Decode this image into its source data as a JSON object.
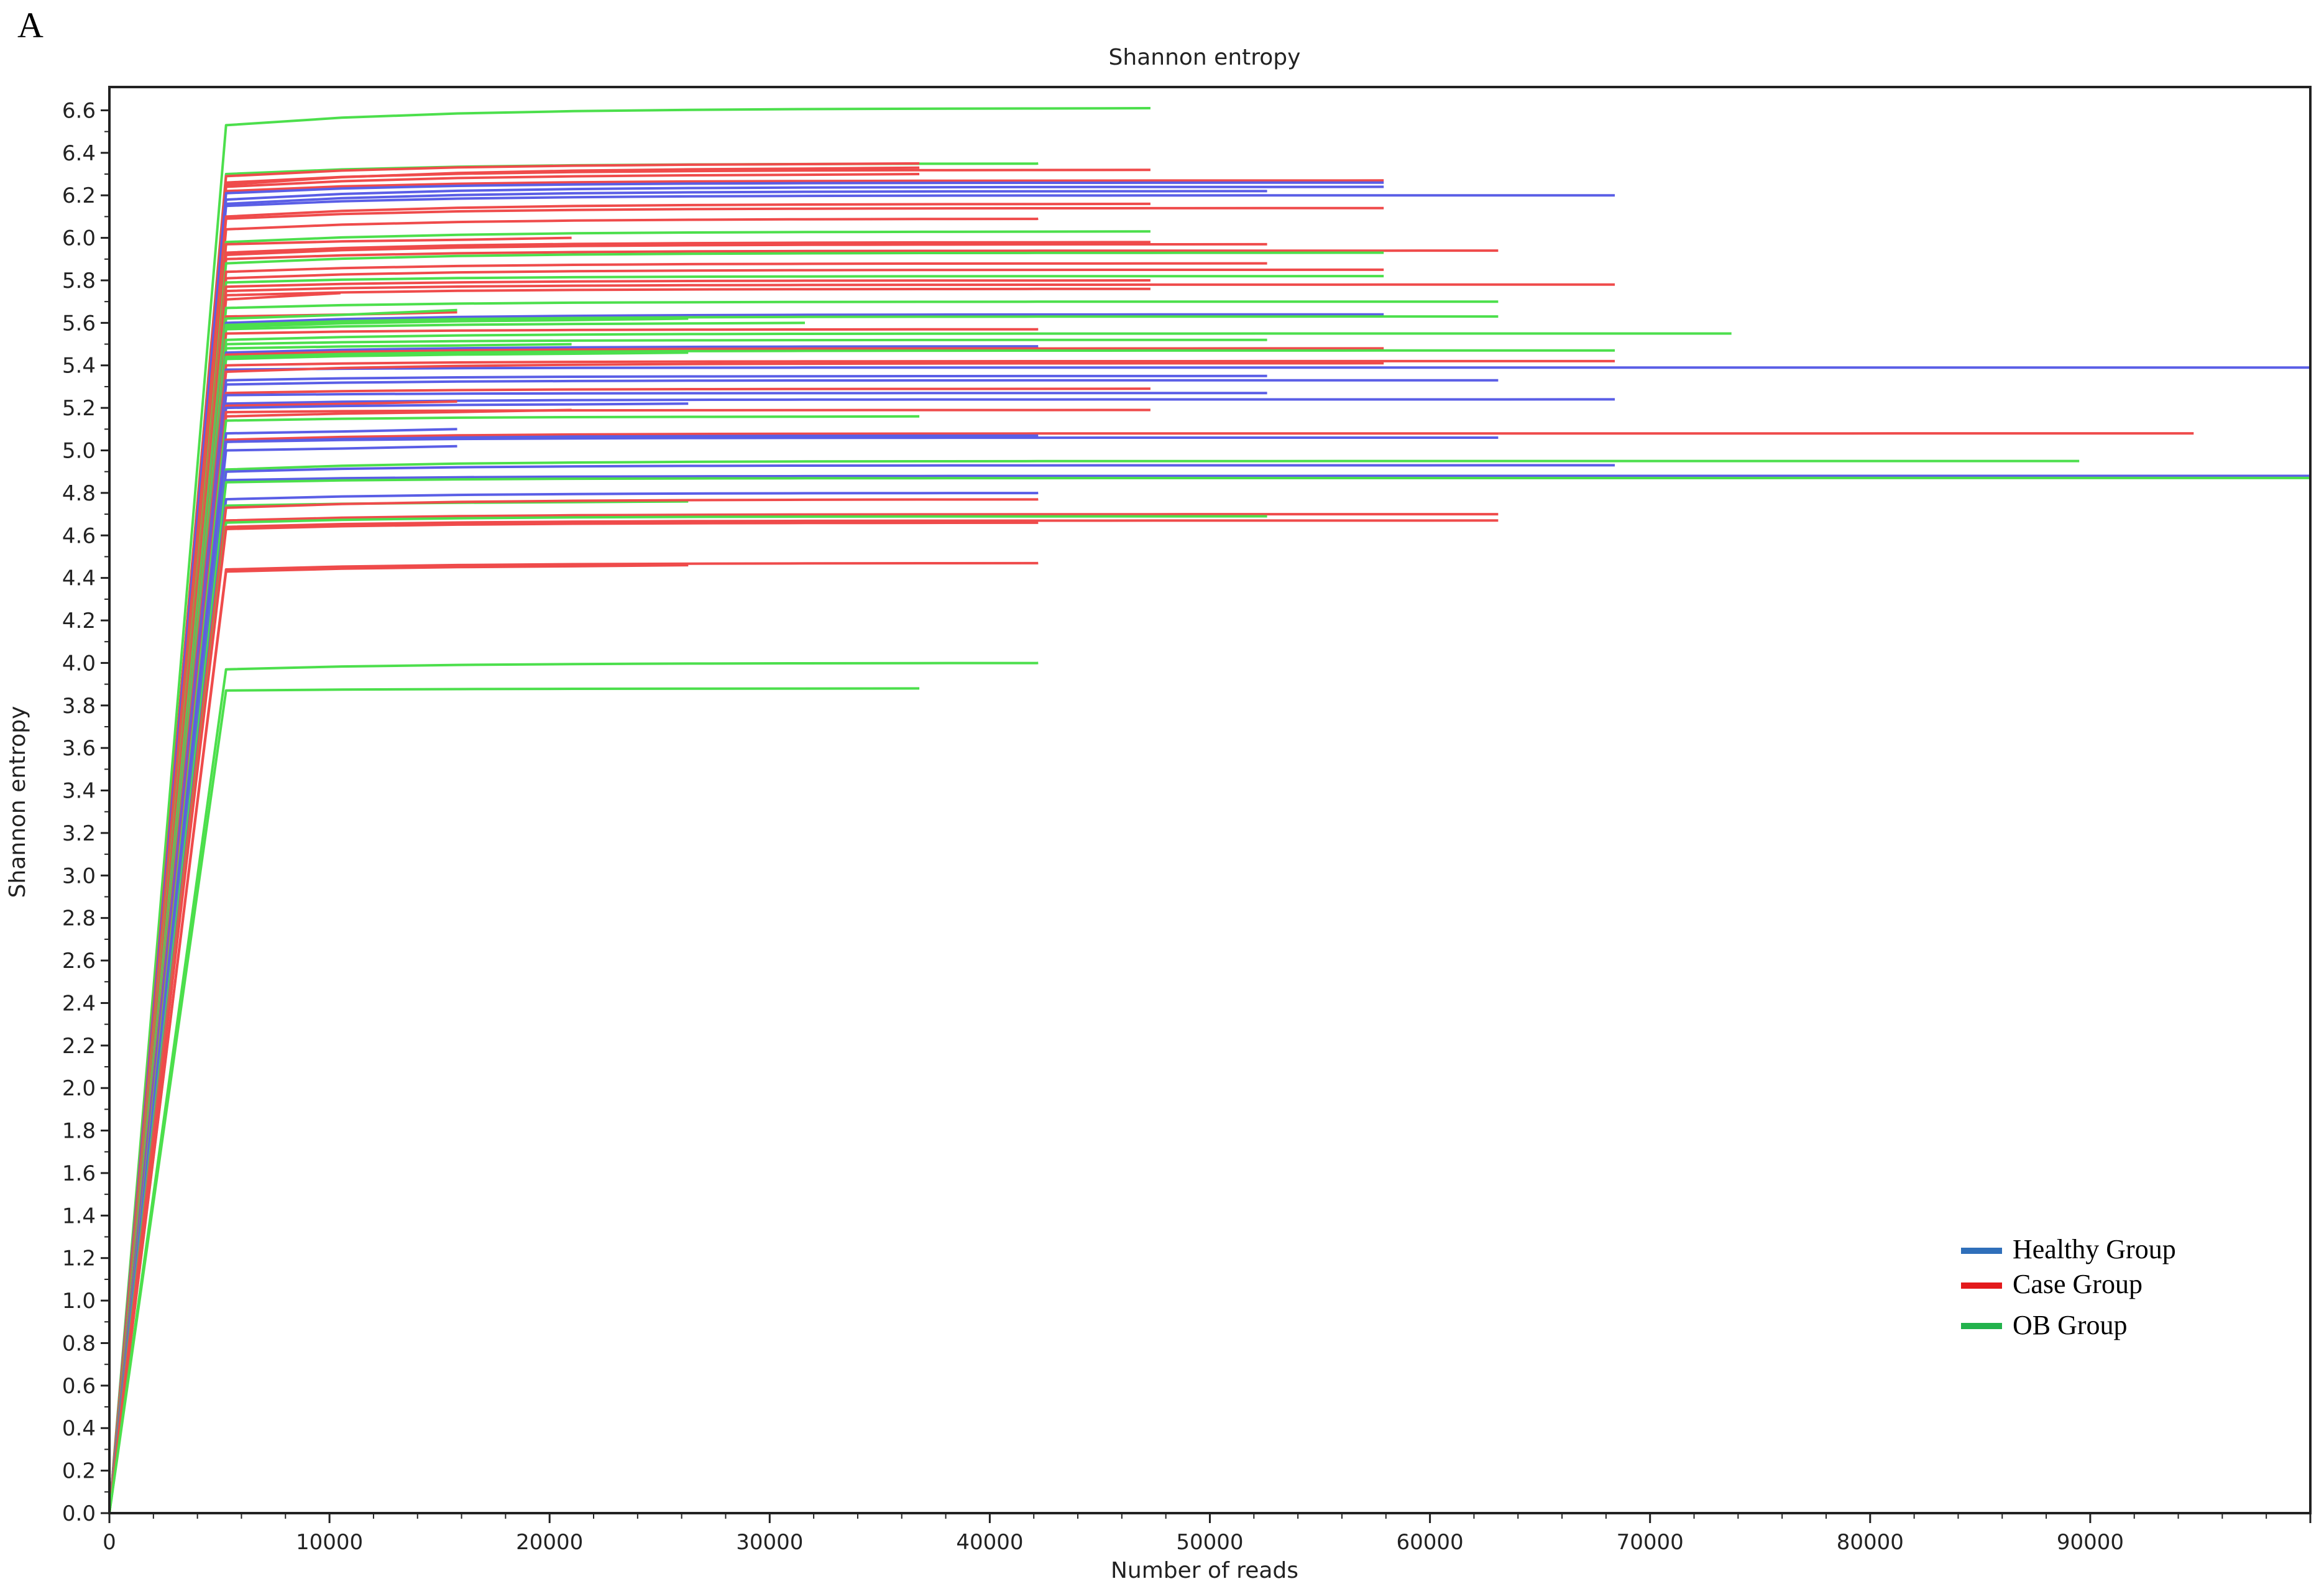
{
  "panel_label": "A",
  "chart_data": {
    "type": "line",
    "title": "Shannon entropy",
    "xlabel": "Number of reads",
    "ylabel": "Shannon entropy",
    "xlim": [
      0,
      100000
    ],
    "ylim": [
      0,
      6.7
    ],
    "x_ticks": [
      0,
      10000,
      20000,
      30000,
      40000,
      50000,
      60000,
      70000,
      80000,
      90000
    ],
    "x_tick_labels": [
      "0",
      "10000",
      "20000",
      "30000",
      "40000",
      "50000",
      "60000",
      "70000",
      "80000",
      "90000"
    ],
    "y_ticks": [
      0.0,
      0.2,
      0.4,
      0.6,
      0.8,
      1.0,
      1.2,
      1.4,
      1.6,
      1.8,
      2.0,
      2.2,
      2.4,
      2.6,
      2.8,
      3.0,
      3.2,
      3.4,
      3.6,
      3.8,
      4.0,
      4.2,
      4.4,
      4.6,
      4.8,
      5.0,
      5.2,
      5.4,
      5.6,
      5.8,
      6.0,
      6.2,
      6.4,
      6.6
    ],
    "y_tick_labels": [
      "0.0",
      "0.2",
      "0.4",
      "0.6",
      "0.8",
      "1.0",
      "1.2",
      "1.4",
      "1.6",
      "1.8",
      "2.0",
      "2.2",
      "2.4",
      "2.6",
      "2.8",
      "3.0",
      "3.2",
      "3.4",
      "3.6",
      "3.8",
      "4.0",
      "4.2",
      "4.4",
      "4.6",
      "4.8",
      "5.0",
      "5.2",
      "5.4",
      "5.6",
      "5.8",
      "6.0",
      "6.2",
      "6.4",
      "6.6"
    ],
    "grid": false,
    "legend_position": "bottom-right",
    "colors": {
      "Healthy Group": "#2f6fba",
      "Case Group": "#e31a1c",
      "OB Group": "#22b24c"
    },
    "line_colors": {
      "Healthy Group": "#5a5ee6",
      "Case Group": "#ef4b4b",
      "OB Group": "#4cdf4c"
    },
    "series": [
      {
        "group": "OB Group",
        "values": [
          6.53,
          6.61
        ],
        "max_reads": 47300
      },
      {
        "group": "OB Group",
        "values": [
          6.3,
          6.35
        ],
        "max_reads": 42200
      },
      {
        "group": "Case Group",
        "values": [
          6.29,
          6.35
        ],
        "max_reads": 36800
      },
      {
        "group": "Case Group",
        "values": [
          6.26,
          6.32
        ],
        "max_reads": 47300
      },
      {
        "group": "Case Group",
        "values": [
          6.25,
          6.33
        ],
        "max_reads": 36800
      },
      {
        "group": "Case Group",
        "values": [
          6.24,
          6.3
        ],
        "max_reads": 36800
      },
      {
        "group": "Case Group",
        "values": [
          6.22,
          6.27
        ],
        "max_reads": 57900
      },
      {
        "group": "Healthy Group",
        "values": [
          6.21,
          6.26
        ],
        "max_reads": 57900
      },
      {
        "group": "Healthy Group",
        "values": [
          6.18,
          6.24
        ],
        "max_reads": 57900
      },
      {
        "group": "Healthy Group",
        "values": [
          6.16,
          6.22
        ],
        "max_reads": 52600
      },
      {
        "group": "Healthy Group",
        "values": [
          6.15,
          6.2
        ],
        "max_reads": 68400
      },
      {
        "group": "Case Group",
        "values": [
          6.1,
          6.16
        ],
        "max_reads": 47300
      },
      {
        "group": "Case Group",
        "values": [
          6.09,
          6.14
        ],
        "max_reads": 57900
      },
      {
        "group": "Case Group",
        "values": [
          6.04,
          6.09
        ],
        "max_reads": 42200
      },
      {
        "group": "OB Group",
        "values": [
          5.98,
          6.03
        ],
        "max_reads": 47300
      },
      {
        "group": "Case Group",
        "values": [
          5.97,
          6.0
        ],
        "max_reads": 21000
      },
      {
        "group": "Case Group",
        "values": [
          5.93,
          5.98
        ],
        "max_reads": 47300
      },
      {
        "group": "Case Group",
        "values": [
          5.92,
          5.97
        ],
        "max_reads": 52600
      },
      {
        "group": "Case Group",
        "values": [
          5.9,
          5.94
        ],
        "max_reads": 63100
      },
      {
        "group": "OB Group",
        "values": [
          5.88,
          5.93
        ],
        "max_reads": 57900
      },
      {
        "group": "Case Group",
        "values": [
          5.84,
          5.88
        ],
        "max_reads": 52600
      },
      {
        "group": "Case Group",
        "values": [
          5.81,
          5.85
        ],
        "max_reads": 57900
      },
      {
        "group": "OB Group",
        "values": [
          5.79,
          5.82
        ],
        "max_reads": 57900
      },
      {
        "group": "Case Group",
        "values": [
          5.77,
          5.8
        ],
        "max_reads": 47300
      },
      {
        "group": "Case Group",
        "values": [
          5.75,
          5.78
        ],
        "max_reads": 68400
      },
      {
        "group": "Case Group",
        "values": [
          5.73,
          5.76
        ],
        "max_reads": 47300
      },
      {
        "group": "Case Group",
        "values": [
          5.71,
          5.74
        ],
        "max_reads": 10500
      },
      {
        "group": "OB Group",
        "values": [
          5.67,
          5.7
        ],
        "max_reads": 63100
      },
      {
        "group": "Case Group",
        "values": [
          5.63,
          5.65
        ],
        "max_reads": 15800
      },
      {
        "group": "OB Group",
        "values": [
          5.62,
          5.66
        ],
        "max_reads": 15800
      },
      {
        "group": "Healthy Group",
        "values": [
          5.6,
          5.64
        ],
        "max_reads": 57900
      },
      {
        "group": "OB Group",
        "values": [
          5.59,
          5.63
        ],
        "max_reads": 63100
      },
      {
        "group": "OB Group",
        "values": [
          5.58,
          5.62
        ],
        "max_reads": 26300
      },
      {
        "group": "OB Group",
        "values": [
          5.57,
          5.6
        ],
        "max_reads": 31600
      },
      {
        "group": "Case Group",
        "values": [
          5.55,
          5.57
        ],
        "max_reads": 42200
      },
      {
        "group": "OB Group",
        "values": [
          5.52,
          5.55
        ],
        "max_reads": 73700
      },
      {
        "group": "OB Group",
        "values": [
          5.5,
          5.52
        ],
        "max_reads": 52600
      },
      {
        "group": "OB Group",
        "values": [
          5.48,
          5.5
        ],
        "max_reads": 21000
      },
      {
        "group": "Healthy Group",
        "values": [
          5.46,
          5.49
        ],
        "max_reads": 42200
      },
      {
        "group": "Case Group",
        "values": [
          5.45,
          5.48
        ],
        "max_reads": 57900
      },
      {
        "group": "OB Group",
        "values": [
          5.44,
          5.47
        ],
        "max_reads": 68400
      },
      {
        "group": "OB Group",
        "values": [
          5.43,
          5.46
        ],
        "max_reads": 26300
      },
      {
        "group": "Case Group",
        "values": [
          5.4,
          5.42
        ],
        "max_reads": 68400
      },
      {
        "group": "Healthy Group",
        "values": [
          5.38,
          5.39
        ],
        "max_reads": 100000
      },
      {
        "group": "Case Group",
        "values": [
          5.37,
          5.41
        ],
        "max_reads": 57900
      },
      {
        "group": "Healthy Group",
        "values": [
          5.33,
          5.35
        ],
        "max_reads": 52600
      },
      {
        "group": "Healthy Group",
        "values": [
          5.31,
          5.33
        ],
        "max_reads": 63100
      },
      {
        "group": "Case Group",
        "values": [
          5.27,
          5.29
        ],
        "max_reads": 47300
      },
      {
        "group": "Healthy Group",
        "values": [
          5.26,
          5.27
        ],
        "max_reads": 52600
      },
      {
        "group": "Healthy Group",
        "values": [
          5.22,
          5.24
        ],
        "max_reads": 68400
      },
      {
        "group": "Case Group",
        "values": [
          5.21,
          5.23
        ],
        "max_reads": 15800
      },
      {
        "group": "Healthy Group",
        "values": [
          5.2,
          5.22
        ],
        "max_reads": 26300
      },
      {
        "group": "Case Group",
        "values": [
          5.18,
          5.19
        ],
        "max_reads": 47300
      },
      {
        "group": "Case Group",
        "values": [
          5.16,
          5.19
        ],
        "max_reads": 21000
      },
      {
        "group": "OB Group",
        "values": [
          5.14,
          5.16
        ],
        "max_reads": 36800
      },
      {
        "group": "Healthy Group",
        "values": [
          5.08,
          5.1
        ],
        "max_reads": 15800
      },
      {
        "group": "Case Group",
        "values": [
          5.05,
          5.08
        ],
        "max_reads": 94700
      },
      {
        "group": "Healthy Group",
        "values": [
          5.04,
          5.07
        ],
        "max_reads": 42200
      },
      {
        "group": "Healthy Group",
        "values": [
          5.04,
          5.06
        ],
        "max_reads": 63100
      },
      {
        "group": "Healthy Group",
        "values": [
          5.0,
          5.02
        ],
        "max_reads": 15800
      },
      {
        "group": "OB Group",
        "values": [
          4.91,
          4.95
        ],
        "max_reads": 89500
      },
      {
        "group": "Healthy Group",
        "values": [
          4.9,
          4.93
        ],
        "max_reads": 68400
      },
      {
        "group": "Healthy Group",
        "values": [
          4.86,
          4.88
        ],
        "max_reads": 100000
      },
      {
        "group": "OB Group",
        "values": [
          4.85,
          4.87
        ],
        "max_reads": 100000
      },
      {
        "group": "Healthy Group",
        "values": [
          4.77,
          4.8
        ],
        "max_reads": 42200
      },
      {
        "group": "OB Group",
        "values": [
          4.74,
          4.76
        ],
        "max_reads": 26300
      },
      {
        "group": "Case Group",
        "values": [
          4.73,
          4.77
        ],
        "max_reads": 42200
      },
      {
        "group": "Case Group",
        "values": [
          4.67,
          4.7
        ],
        "max_reads": 63100
      },
      {
        "group": "OB Group",
        "values": [
          4.66,
          4.69
        ],
        "max_reads": 52600
      },
      {
        "group": "Case Group",
        "values": [
          4.64,
          4.67
        ],
        "max_reads": 63100
      },
      {
        "group": "Case Group",
        "values": [
          4.63,
          4.66
        ],
        "max_reads": 42200
      },
      {
        "group": "Case Group",
        "values": [
          4.44,
          4.47
        ],
        "max_reads": 42200
      },
      {
        "group": "Case Group",
        "values": [
          4.43,
          4.46
        ],
        "max_reads": 26300
      },
      {
        "group": "OB Group",
        "values": [
          3.97,
          4.0
        ],
        "max_reads": 42200
      },
      {
        "group": "OB Group",
        "values": [
          3.87,
          3.88
        ],
        "max_reads": 36800
      }
    ]
  },
  "legend": {
    "items": [
      {
        "label": "Healthy Group",
        "color": "#2f6fba"
      },
      {
        "label": "Case Group",
        "color": "#e31a1c"
      },
      {
        "label": "OB Group",
        "color": "#22b24c"
      }
    ]
  }
}
